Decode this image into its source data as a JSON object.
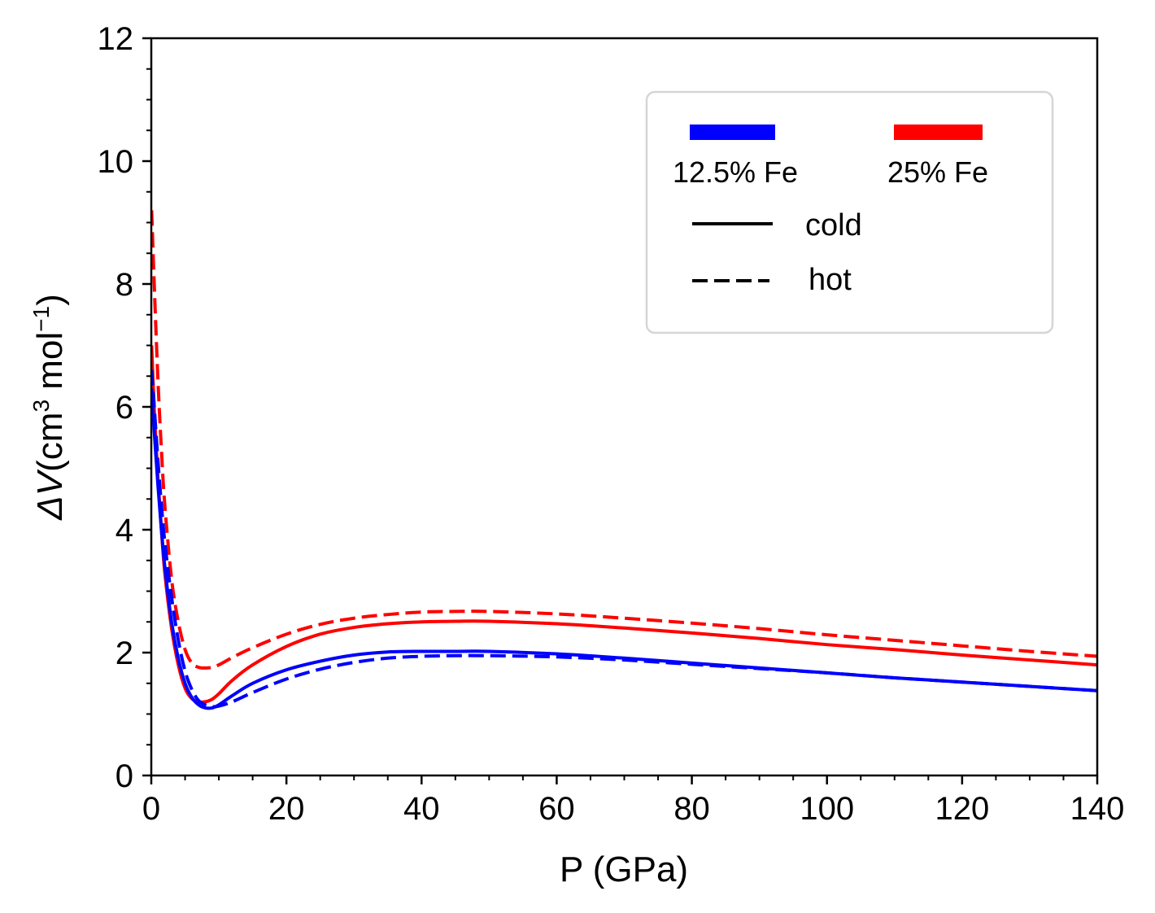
{
  "chart_data": {
    "type": "line",
    "xlabel": "P (GPa)",
    "ylabel": {
      "prefix": "ΔV",
      "unit_open": "(cm",
      "unit_sup1": "3",
      "unit_mid": " mol",
      "unit_sup2": "−1",
      "unit_close": ")"
    },
    "xlim": [
      0,
      140
    ],
    "ylim": [
      0,
      12
    ],
    "xticks": [
      0,
      20,
      40,
      60,
      80,
      100,
      120,
      140
    ],
    "yticks": [
      0,
      2,
      4,
      6,
      8,
      10,
      12
    ],
    "xminor_step": 5,
    "yminor_step": 0.5,
    "grid": false,
    "legend": {
      "placement": "top-right",
      "composition_entries": [
        {
          "label": "12.5% Fe",
          "color": "#0000ff"
        },
        {
          "label": "25% Fe",
          "color": "#ff0000"
        }
      ],
      "style_entries": [
        {
          "label": "cold",
          "dash": "solid"
        },
        {
          "label": "hot",
          "dash": "dashed"
        }
      ]
    },
    "series": [
      {
        "composition": "12.5% Fe",
        "condition": "cold",
        "color": "#0000ff",
        "dash": "solid",
        "x": [
          0.05,
          0.5,
          1,
          1.5,
          2,
          3,
          4,
          5,
          6,
          7,
          8,
          9,
          10,
          12,
          15,
          20,
          25,
          30,
          35,
          40,
          45,
          50,
          60,
          70,
          80,
          90,
          100,
          110,
          120,
          130,
          140
        ],
        "y": [
          6.3,
          5.5,
          4.7,
          4.0,
          3.4,
          2.5,
          1.9,
          1.5,
          1.27,
          1.15,
          1.1,
          1.1,
          1.15,
          1.3,
          1.5,
          1.72,
          1.86,
          1.96,
          2.01,
          2.02,
          2.02,
          2.02,
          1.98,
          1.91,
          1.83,
          1.75,
          1.67,
          1.59,
          1.52,
          1.45,
          1.38
        ]
      },
      {
        "composition": "12.5% Fe",
        "condition": "hot",
        "color": "#0000ff",
        "dash": "dashed",
        "x": [
          0.05,
          0.5,
          1,
          1.5,
          2,
          3,
          4,
          5,
          6,
          7,
          8,
          9,
          10,
          12,
          15,
          20,
          25,
          30,
          35,
          40,
          45,
          50,
          60,
          70,
          80,
          90,
          100,
          110,
          120,
          130,
          140
        ],
        "y": [
          6.6,
          5.9,
          5.1,
          4.4,
          3.8,
          2.9,
          2.2,
          1.7,
          1.4,
          1.22,
          1.15,
          1.12,
          1.13,
          1.2,
          1.35,
          1.57,
          1.73,
          1.84,
          1.91,
          1.94,
          1.95,
          1.95,
          1.93,
          1.88,
          1.81,
          1.74,
          1.67,
          1.59,
          1.52,
          1.45,
          1.38
        ]
      },
      {
        "composition": "25% Fe",
        "condition": "cold",
        "color": "#ff0000",
        "dash": "solid",
        "x": [
          0.05,
          0.5,
          1,
          1.5,
          2,
          3,
          4,
          5,
          6,
          7,
          8,
          9,
          10,
          12,
          15,
          20,
          25,
          30,
          35,
          40,
          45,
          50,
          60,
          70,
          80,
          90,
          100,
          110,
          120,
          130,
          140
        ],
        "y": [
          7.0,
          5.8,
          4.8,
          4.0,
          3.3,
          2.4,
          1.8,
          1.42,
          1.25,
          1.2,
          1.2,
          1.24,
          1.33,
          1.55,
          1.8,
          2.1,
          2.3,
          2.41,
          2.47,
          2.5,
          2.51,
          2.51,
          2.47,
          2.4,
          2.32,
          2.23,
          2.13,
          2.05,
          1.96,
          1.88,
          1.8
        ]
      },
      {
        "composition": "25% Fe",
        "condition": "hot",
        "color": "#ff0000",
        "dash": "dashed",
        "x": [
          0.05,
          0.5,
          1,
          1.5,
          2,
          3,
          4,
          5,
          6,
          7,
          8,
          9,
          10,
          12,
          15,
          20,
          25,
          30,
          35,
          40,
          45,
          50,
          60,
          70,
          80,
          90,
          100,
          110,
          120,
          130,
          140
        ],
        "y": [
          9.2,
          7.8,
          6.4,
          5.3,
          4.4,
          3.2,
          2.5,
          2.05,
          1.83,
          1.76,
          1.75,
          1.76,
          1.8,
          1.92,
          2.08,
          2.3,
          2.46,
          2.56,
          2.62,
          2.66,
          2.67,
          2.67,
          2.63,
          2.56,
          2.48,
          2.39,
          2.29,
          2.2,
          2.11,
          2.02,
          1.94
        ]
      }
    ]
  }
}
